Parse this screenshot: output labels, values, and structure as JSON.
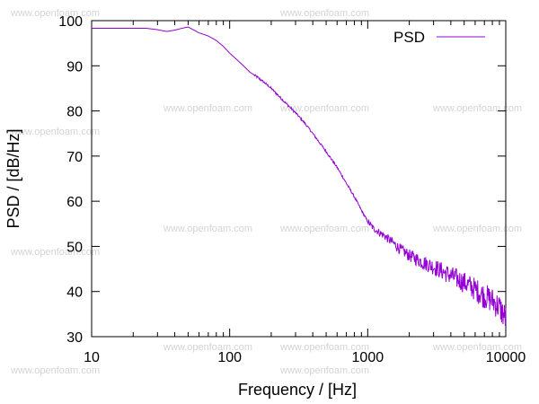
{
  "chart_data": {
    "type": "line",
    "title": "",
    "xlabel": "Frequency / [Hz]",
    "ylabel": "PSD / [dB/Hz]",
    "x_scale": "log",
    "xlim": [
      10,
      10000
    ],
    "ylim": [
      30,
      100
    ],
    "x_ticks": [
      10,
      100,
      1000,
      10000
    ],
    "x_tick_labels": [
      "10",
      "100",
      "1000",
      "10000"
    ],
    "y_ticks": [
      30,
      40,
      50,
      60,
      70,
      80,
      90,
      100
    ],
    "y_tick_labels": [
      "30",
      "40",
      "50",
      "60",
      "70",
      "80",
      "90",
      "100"
    ],
    "grid": false,
    "legend": {
      "position": "top-right",
      "entries": [
        "PSD"
      ]
    },
    "series": [
      {
        "name": "PSD",
        "color": "#9400d3",
        "x": [
          10,
          15,
          20,
          25,
          30,
          35,
          40,
          45,
          50,
          60,
          70,
          80,
          90,
          100,
          120,
          140,
          160,
          180,
          200,
          250,
          300,
          350,
          400,
          500,
          600,
          700,
          800,
          900,
          1000,
          1100,
          1200,
          1300,
          1500,
          1700,
          2000,
          2500,
          3000,
          4000,
          5000,
          6000,
          7000,
          8000,
          9000,
          10000
        ],
        "y": [
          98.3,
          98.3,
          98.3,
          98.3,
          98.0,
          97.6,
          97.9,
          98.3,
          98.6,
          97.3,
          96.6,
          95.6,
          94.3,
          92.8,
          90.6,
          88.6,
          87.4,
          86.2,
          85.0,
          82.0,
          79.6,
          77.3,
          75.0,
          71.0,
          67.5,
          64.0,
          61.0,
          58.0,
          55.5,
          54.0,
          53.2,
          52.5,
          51.0,
          49.5,
          48.0,
          46.5,
          45.5,
          43.5,
          42.0,
          40.5,
          39.0,
          38.0,
          36.5,
          34.0
        ]
      }
    ]
  },
  "watermark": "www.openfoam.com"
}
